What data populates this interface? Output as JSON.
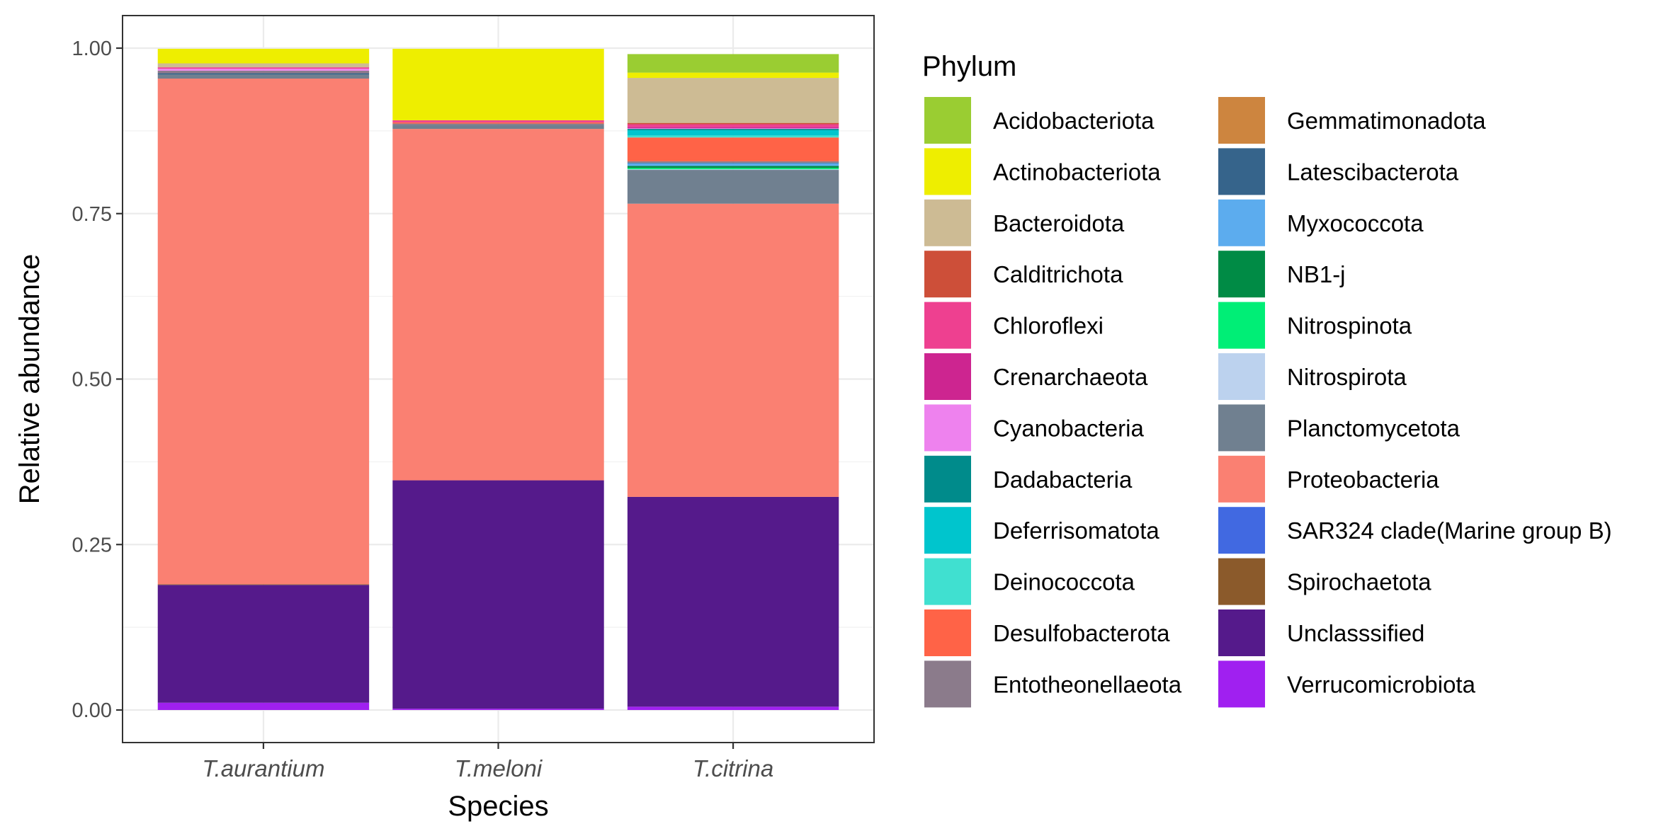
{
  "chart_data": {
    "type": "bar",
    "stacked": true,
    "xlabel": "Species",
    "ylabel": "Relative abundance",
    "ylim": [
      0,
      1
    ],
    "yticks": [
      "0.00",
      "0.25",
      "0.50",
      "0.75",
      "1.00"
    ],
    "ytick_values": [
      0,
      0.25,
      0.5,
      0.75,
      1
    ],
    "grid": true,
    "legend_title": "Phylum",
    "legend_position": "right",
    "categories": [
      "T.aurantium",
      "T.meloni",
      "T.citrina"
    ],
    "series": [
      {
        "name": "Acidobacteriota",
        "color": "#9ACD32",
        "values": [
          0.0,
          0.0,
          0.028
        ]
      },
      {
        "name": "Actinobacteriota",
        "color": "#EEEE00",
        "values": [
          0.022,
          0.108,
          0.008
        ]
      },
      {
        "name": "Bacteroidota",
        "color": "#CDBB94",
        "values": [
          0.006,
          0.0,
          0.068
        ]
      },
      {
        "name": "Calditrichota",
        "color": "#CD4F39",
        "values": [
          0.0,
          0.0,
          0.002
        ]
      },
      {
        "name": "Chloroflexi",
        "color": "#EE4090",
        "values": [
          0.002,
          0.003,
          0.004
        ]
      },
      {
        "name": "Crenarchaeota",
        "color": "#CD2590",
        "values": [
          0.0,
          0.0,
          0.002
        ]
      },
      {
        "name": "Cyanobacteria",
        "color": "#EE82EE",
        "values": [
          0.003,
          0.0,
          0.001
        ]
      },
      {
        "name": "Dadabacteria",
        "color": "#008B8B",
        "values": [
          0.0,
          0.0,
          0.002
        ]
      },
      {
        "name": "Deferrisomatota",
        "color": "#00C5CD",
        "values": [
          0.0,
          0.0,
          0.008
        ]
      },
      {
        "name": "Deinococcota",
        "color": "#40E0D0",
        "values": [
          0.0,
          0.0,
          0.003
        ]
      },
      {
        "name": "Desulfobacterota",
        "color": "#FF6347",
        "values": [
          0.0,
          0.002,
          0.036
        ]
      },
      {
        "name": "Entotheonellaeota",
        "color": "#8B7B8B",
        "values": [
          0.004,
          0.002,
          0.002
        ]
      },
      {
        "name": "Gemmatimonadota",
        "color": "#CD853F",
        "values": [
          0.0,
          0.0,
          0.0
        ]
      },
      {
        "name": "Latescibacterota",
        "color": "#36648B",
        "values": [
          0.002,
          0.0,
          0.001
        ]
      },
      {
        "name": "Myxococcota",
        "color": "#5CACEE",
        "values": [
          0.0,
          0.0,
          0.004
        ]
      },
      {
        "name": "NB1-j",
        "color": "#008B45",
        "values": [
          0.0,
          0.0,
          0.003
        ]
      },
      {
        "name": "Nitrospinota",
        "color": "#00EE76",
        "values": [
          0.0,
          0.0,
          0.002
        ]
      },
      {
        "name": "Nitrospirota",
        "color": "#BCD2EE",
        "values": [
          0.0,
          0.0,
          0.001
        ]
      },
      {
        "name": "Planctomycetota",
        "color": "#708090",
        "values": [
          0.006,
          0.006,
          0.051
        ]
      },
      {
        "name": "Proteobacteria",
        "color": "#FA8072",
        "values": [
          0.764,
          0.531,
          0.443
        ]
      },
      {
        "name": "SAR324 clade(Marine group B)",
        "color": "#4169E1",
        "values": [
          0.0,
          0.0,
          0.0
        ]
      },
      {
        "name": "Spirochaetota",
        "color": "#8B5A2B",
        "values": [
          0.001,
          0.0,
          0.0
        ]
      },
      {
        "name": "Unclasssified",
        "color": "#551A8B",
        "values": [
          0.178,
          0.345,
          0.317
        ]
      },
      {
        "name": "Verrucomicrobiota",
        "color": "#A020F0",
        "values": [
          0.011,
          0.002,
          0.005
        ]
      }
    ]
  }
}
